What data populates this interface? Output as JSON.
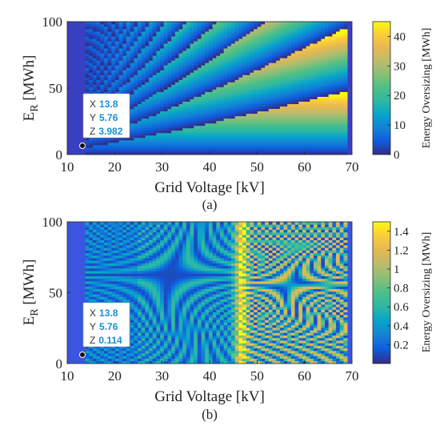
{
  "chart_data": [
    {
      "type": "heatmap",
      "panel_label": "(a)",
      "xlabel": "Grid Voltage [kV]",
      "ylabel_main": "E",
      "ylabel_sub": "R",
      "ylabel_unit": " [MWh]",
      "xlim": [
        10,
        70
      ],
      "ylim": [
        0,
        100
      ],
      "x_data_range": [
        13.8,
        69
      ],
      "y_data_range": [
        0,
        100
      ],
      "xticks": [
        "10",
        "20",
        "30",
        "40",
        "50",
        "60",
        "70"
      ],
      "yticks": [
        "0",
        "50",
        "100"
      ],
      "colorbar": {
        "label": "Energy Oversizing [MWh]",
        "range": [
          0,
          45
        ],
        "ticks": [
          "0",
          "10",
          "20",
          "30",
          "40"
        ],
        "colormap": "parula"
      },
      "datatip": {
        "x_key": "X",
        "x": "13.8",
        "y_key": "Y",
        "y": "5.76",
        "z_key": "Z",
        "z": "3.982"
      },
      "description_values": {
        "pattern": "sawtooth bands: value = E_R minus largest multiple of step below E_R; step grows with voltage",
        "step_at_x_min": 5.76,
        "step_at_x_max": 48
      }
    },
    {
      "type": "heatmap",
      "panel_label": "(b)",
      "xlabel": "Grid Voltage [kV]",
      "ylabel_main": "E",
      "ylabel_sub": "R",
      "ylabel_unit": " [MWh]",
      "xlim": [
        10,
        70
      ],
      "ylim": [
        0,
        100
      ],
      "x_data_range": [
        13.8,
        69
      ],
      "y_data_range": [
        0,
        100
      ],
      "xticks": [
        "10",
        "20",
        "30",
        "40",
        "50",
        "60",
        "70"
      ],
      "yticks": [
        "0",
        "50",
        "100"
      ],
      "colorbar": {
        "label": "Energy Oversizing [MWh]",
        "range": [
          0,
          1.5
        ],
        "ticks": [
          "0.2",
          "0.4",
          "0.6",
          "0.8",
          "1",
          "1.2",
          "1.4"
        ],
        "colormap": "parula"
      },
      "datatip": {
        "x_key": "X",
        "x": "13.8",
        "y_key": "Y",
        "y": "5.76",
        "z_key": "Z",
        "z": "0.114"
      },
      "description_values": {
        "pattern": "fine striped bands with hyperbolic fringe pattern; bright vertical band near 46-47 kV",
        "bright_band_kV": 46.5
      }
    }
  ]
}
